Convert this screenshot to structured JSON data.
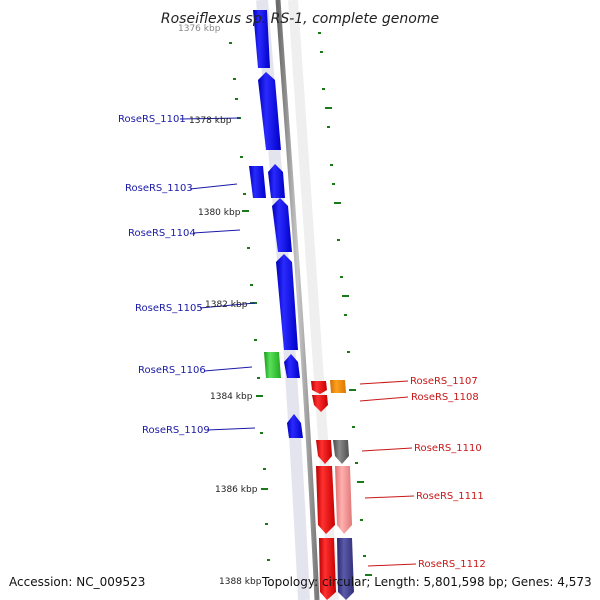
{
  "title": "Roseiflexus sp. RS-1, complete genome",
  "accession": "Accession: NC_009523",
  "topology": "Topology: circular; Length: 5,801,598 bp; Genes: 4,573",
  "colors": {
    "backbone": "#8f8f8f",
    "tick": "#1a7a1a",
    "left_label": "#1a1aa8",
    "right_label": "#c81818",
    "blue_gene": "#1010e6",
    "green_gene": "#2ec82e",
    "red_gene": "#e81010",
    "orange_gene": "#f08c00",
    "gray_gene": "#6a6a6a",
    "pink_gene": "#f08c8c",
    "navy_gene": "#3c3c8c"
  },
  "kbp_labels": [
    "1376 kbp",
    "1378 kbp",
    "1380 kbp",
    "1382 kbp",
    "1384 kbp",
    "1386 kbp",
    "1388 kbp"
  ],
  "genes_left": [
    {
      "label": "RoseRS_1101",
      "color": "blue"
    },
    {
      "label": "RoseRS_1103",
      "color": "blue"
    },
    {
      "label": "RoseRS_1104",
      "color": "blue"
    },
    {
      "label": "RoseRS_1105",
      "color": "blue"
    },
    {
      "label": "RoseRS_1106",
      "color": "green"
    },
    {
      "label": "RoseRS_1109",
      "color": "blue"
    }
  ],
  "genes_right": [
    {
      "label": "RoseRS_1107",
      "color": "orange"
    },
    {
      "label": "RoseRS_1108",
      "color": "red"
    },
    {
      "label": "RoseRS_1110",
      "color": "gray"
    },
    {
      "label": "RoseRS_1111",
      "color": "pink"
    },
    {
      "label": "RoseRS_1112",
      "color": "navy"
    }
  ]
}
